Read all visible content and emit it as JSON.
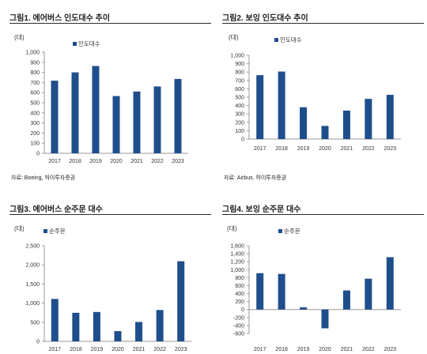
{
  "colors": {
    "bar": "#1f4e8c",
    "axis": "#999999",
    "text": "#333333"
  },
  "charts": [
    {
      "title": "그림1. 에어버스 인도대수 추이",
      "unit": "(대)",
      "source": "자료: Boeing, 하이투자증권",
      "chart_data": {
        "type": "bar",
        "categories": [
          "2017",
          "2018",
          "2019",
          "2020",
          "2021",
          "2022",
          "2023"
        ],
        "series": [
          {
            "name": "인도대수",
            "values": [
              718,
              800,
              863,
              566,
              611,
              661,
              735
            ]
          }
        ],
        "ylim": [
          0,
          1000
        ],
        "yticks": [
          0,
          100,
          200,
          300,
          400,
          500,
          600,
          700,
          800,
          900,
          1000
        ],
        "ytick_labels": [
          "0",
          "100",
          "200",
          "300",
          "400",
          "500",
          "600",
          "700",
          "800",
          "900",
          "1,000"
        ],
        "legend": "top-left"
      }
    },
    {
      "title": "그림2. 보잉 인도대수 추이",
      "unit": "(대)",
      "source": "자료: Airbus, 하이투자증권",
      "chart_data": {
        "type": "bar",
        "categories": [
          "2017",
          "2018",
          "2019",
          "2020",
          "2021",
          "2022",
          "2023"
        ],
        "series": [
          {
            "name": "인도대수",
            "values": [
              763,
              806,
              380,
              157,
              340,
              480,
              528
            ]
          }
        ],
        "ylim": [
          0,
          1000
        ],
        "yticks": [
          0,
          100,
          200,
          300,
          400,
          500,
          600,
          700,
          800,
          900,
          1000
        ],
        "ytick_labels": [
          "0",
          "100",
          "200",
          "300",
          "400",
          "500",
          "600",
          "700",
          "800",
          "900",
          "1,000"
        ],
        "legend": "top-left"
      }
    },
    {
      "title": "그림3. 에어버스 순주문 대수",
      "unit": "(대)",
      "source": "",
      "chart_data": {
        "type": "bar",
        "categories": [
          "2017",
          "2018",
          "2019",
          "2020",
          "2021",
          "2022",
          "2023"
        ],
        "series": [
          {
            "name": "순주문",
            "values": [
              1109,
              747,
              768,
              268,
              507,
              820,
              2094
            ]
          }
        ],
        "ylim": [
          0,
          2500
        ],
        "yticks": [
          0,
          500,
          1000,
          1500,
          2000,
          2500
        ],
        "ytick_labels": [
          "0",
          "500",
          "1,000",
          "1,500",
          "2,000",
          "2,500"
        ],
        "legend": "top-left"
      }
    },
    {
      "title": "그림4. 보잉 순주문 대수",
      "unit": "(대)",
      "source": "",
      "chart_data": {
        "type": "bar",
        "categories": [
          "2017",
          "2018",
          "2019",
          "2020",
          "2021",
          "2022",
          "2023"
        ],
        "series": [
          {
            "name": "순주문",
            "values": [
              912,
              893,
              54,
              -471,
              479,
              774,
              1314
            ]
          }
        ],
        "ylim": [
          -600,
          1600
        ],
        "yticks": [
          -600,
          -400,
          -200,
          0,
          200,
          400,
          600,
          800,
          1000,
          1200,
          1400,
          1600
        ],
        "ytick_labels": [
          "-600",
          "-400",
          "-200",
          "0",
          "200",
          "400",
          "600",
          "800",
          "1,000",
          "1,200",
          "1,400",
          "1,600"
        ],
        "legend": "top-left"
      }
    }
  ]
}
